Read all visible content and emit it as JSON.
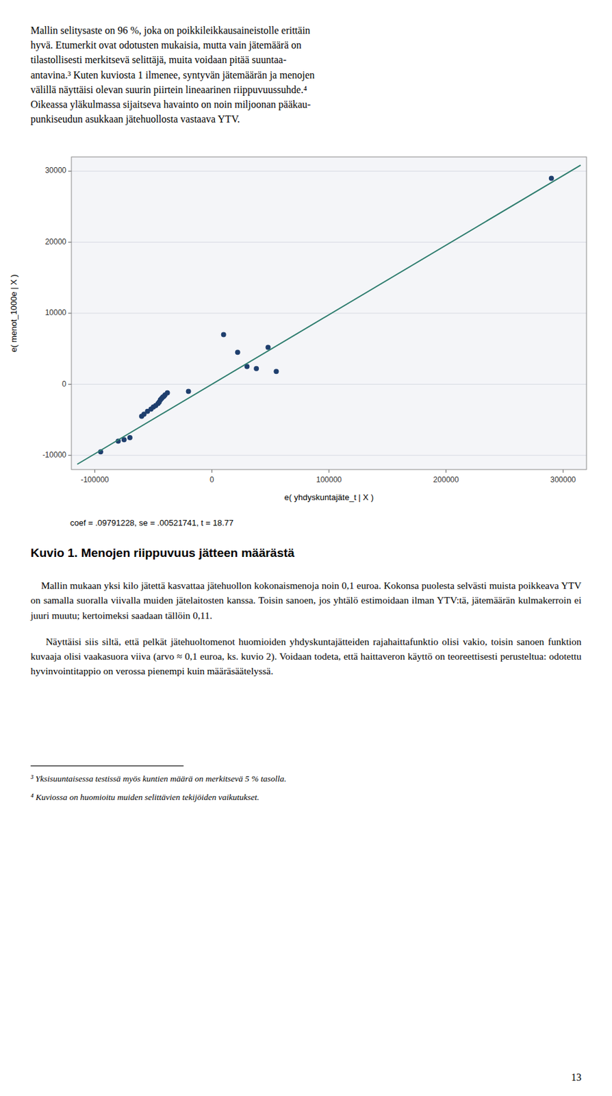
{
  "text_above": "Mallin selitysaste on 96 %, joka on poikkileikkausaineistolle erittäin\nhyvä. Etumerkit ovat odotusten mukaisia, mutta vain jätemäärä on\ntilastollisesti merkitsevä selittäjä, muita voidaan pitää suuntaa-\nantavina.³ Kuten kuviosta 1 ilmenee, syntyvän jätemäärän ja menojen\nvälillä näyttäisi olevan suurin piirtein lineaarinen riippuvuussuhde.⁴\nOikeassa yläkulmassa sijaitseva havainto on noin miljoonan pääkau-\npunkiseudun asukkaan jätehuollosta vastaava YTV.",
  "caption": "Kuvio 1. Menojen riippuvuus jätteen määrästä",
  "paragraphs": [
    "    Mallin mukaan yksi kilo jätettä kasvattaa jätehuollon kokonaismenoja noin 0,1 euroa. Kokonsa puolesta selvästi muista poikkeava YTV on samalla suoralla viivalla muiden jätelaitosten kanssa. Toisin sanoen, jos yhtälö estimoidaan ilman YTV:tä, jätemäärän kulmakerroin ei juuri muutu; kertoimeksi saadaan tällöin 0,11.",
    "    Näyttäisi siis siltä, että pelkät jätehuoltomenot huomioiden yhdyskuntajätteiden rajahaittafunktio olisi vakio, toisin sanoen funktion kuvaaja olisi vaakasuora viiva (arvo ≈ 0,1 euroa, ks. kuvio 2). Voidaan todeta, että haittaveron käyttö on teoreettisesti perusteltua: odotettu hyvinvointitappio on verossa pienempi kuin määräsäätelyssä."
  ],
  "footnotes": [
    "³ Yksisuuntaisessa testissä myös kuntien määrä on merkitsevä 5 % tasolla.",
    "⁴ Kuviossa on huomioitu muiden selittävien tekijöiden vaikutukset."
  ],
  "page_number": "13",
  "chart_data": {
    "type": "scatter",
    "x_label": "e( yhdyskuntajäte_t | X )",
    "y_label": "e( menot_1000e | X )",
    "annotation": "coef = .09791228, se = .00521741, t = 18.77",
    "xlim": [
      -120000,
      320000
    ],
    "ylim": [
      -12000,
      32000
    ],
    "xticks": [
      -100000,
      0,
      100000,
      200000,
      300000
    ],
    "yticks": [
      -10000,
      0,
      10000,
      20000,
      30000
    ],
    "grid": "y",
    "series": [
      {
        "type": "scatter",
        "color": "#1f3f6e",
        "x": [
          -95000,
          -80000,
          -75000,
          -70000,
          -60000,
          -58000,
          -55000,
          -52000,
          -50000,
          -48000,
          -46000,
          -45000,
          -44000,
          -43000,
          -42000,
          -41000,
          -40000,
          -38000,
          -20000,
          10000,
          22000,
          30000,
          38000,
          48000,
          55000,
          290000
        ],
        "values": [
          -9500,
          -8000,
          -7800,
          -7500,
          -4500,
          -4200,
          -3800,
          -3500,
          -3200,
          -3000,
          -2700,
          -2500,
          -2200,
          -2000,
          -1800,
          -1700,
          -1500,
          -1200,
          -1000,
          7000,
          4500,
          2500,
          2200,
          5200,
          1800,
          29000
        ]
      },
      {
        "type": "line",
        "color": "#2e7d6e",
        "x": [
          -115000,
          315000
        ],
        "values": [
          -11259.9122,
          30842.3682
        ]
      }
    ]
  }
}
